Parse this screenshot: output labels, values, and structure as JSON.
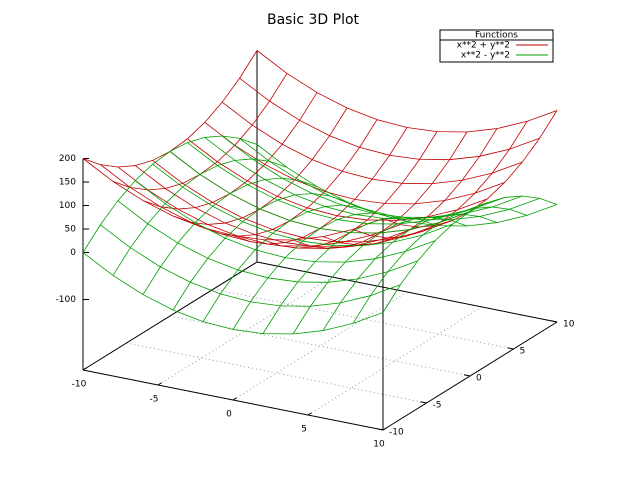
{
  "chart_data": {
    "type": "surface3d",
    "title": "Basic 3D Plot",
    "x": [
      -10,
      -8,
      -6,
      -4,
      -2,
      0,
      2,
      4,
      6,
      8,
      10
    ],
    "y": [
      -10,
      -8,
      -6,
      -4,
      -2,
      0,
      2,
      4,
      6,
      8,
      10
    ],
    "xlim": [
      -10,
      10
    ],
    "ylim": [
      -10,
      10
    ],
    "zlim": [
      -100,
      200
    ],
    "xticks": [
      -10,
      -5,
      0,
      5,
      10
    ],
    "yticks": [
      -10,
      -5,
      0,
      5,
      10
    ],
    "zticks": [
      -100,
      0,
      50,
      100,
      150,
      200
    ],
    "grid": true,
    "legend": "top-right",
    "legend_title": "Functions",
    "series": [
      {
        "name": "x**2 + y**2",
        "color": "#c00000",
        "values": [
          [
            200,
            164,
            136,
            116,
            104,
            100,
            104,
            116,
            136,
            164,
            200
          ],
          [
            164,
            128,
            100,
            80,
            68,
            64,
            68,
            80,
            100,
            128,
            164
          ],
          [
            136,
            100,
            72,
            52,
            40,
            36,
            40,
            52,
            72,
            100,
            136
          ],
          [
            116,
            80,
            52,
            32,
            20,
            16,
            20,
            32,
            52,
            80,
            116
          ],
          [
            104,
            68,
            40,
            20,
            8,
            4,
            8,
            20,
            40,
            68,
            104
          ],
          [
            100,
            64,
            36,
            16,
            4,
            0,
            4,
            16,
            36,
            64,
            100
          ],
          [
            104,
            68,
            40,
            20,
            8,
            4,
            8,
            20,
            40,
            68,
            104
          ],
          [
            116,
            80,
            52,
            32,
            20,
            16,
            20,
            32,
            52,
            80,
            116
          ],
          [
            136,
            100,
            72,
            52,
            40,
            36,
            40,
            52,
            72,
            100,
            136
          ],
          [
            164,
            128,
            100,
            80,
            68,
            64,
            68,
            80,
            100,
            128,
            164
          ],
          [
            200,
            164,
            136,
            116,
            104,
            100,
            104,
            116,
            136,
            164,
            200
          ]
        ]
      },
      {
        "name": "x**2 - y**2",
        "color": "#00a000",
        "values": [
          [
            0,
            36,
            64,
            84,
            96,
            100,
            96,
            84,
            64,
            36,
            0
          ],
          [
            -36,
            0,
            28,
            48,
            60,
            64,
            60,
            48,
            28,
            0,
            -36
          ],
          [
            -64,
            -28,
            0,
            20,
            32,
            36,
            32,
            20,
            0,
            -28,
            -64
          ],
          [
            -84,
            -48,
            -20,
            0,
            12,
            16,
            12,
            0,
            -20,
            -48,
            -84
          ],
          [
            -96,
            -60,
            -32,
            -12,
            0,
            4,
            0,
            -12,
            -32,
            -60,
            -96
          ],
          [
            -100,
            -64,
            -36,
            -16,
            -4,
            0,
            -4,
            -16,
            -36,
            -64,
            -100
          ],
          [
            -96,
            -60,
            -32,
            -12,
            0,
            4,
            0,
            -12,
            -32,
            -60,
            -96
          ],
          [
            -84,
            -48,
            -20,
            0,
            12,
            16,
            12,
            0,
            -20,
            -48,
            -84
          ],
          [
            -64,
            -28,
            0,
            20,
            32,
            36,
            32,
            20,
            0,
            -28,
            -64
          ],
          [
            -36,
            0,
            28,
            48,
            60,
            64,
            60,
            48,
            28,
            0,
            -36
          ],
          [
            0,
            36,
            64,
            84,
            96,
            100,
            96,
            84,
            64,
            36,
            0
          ]
        ]
      }
    ]
  }
}
